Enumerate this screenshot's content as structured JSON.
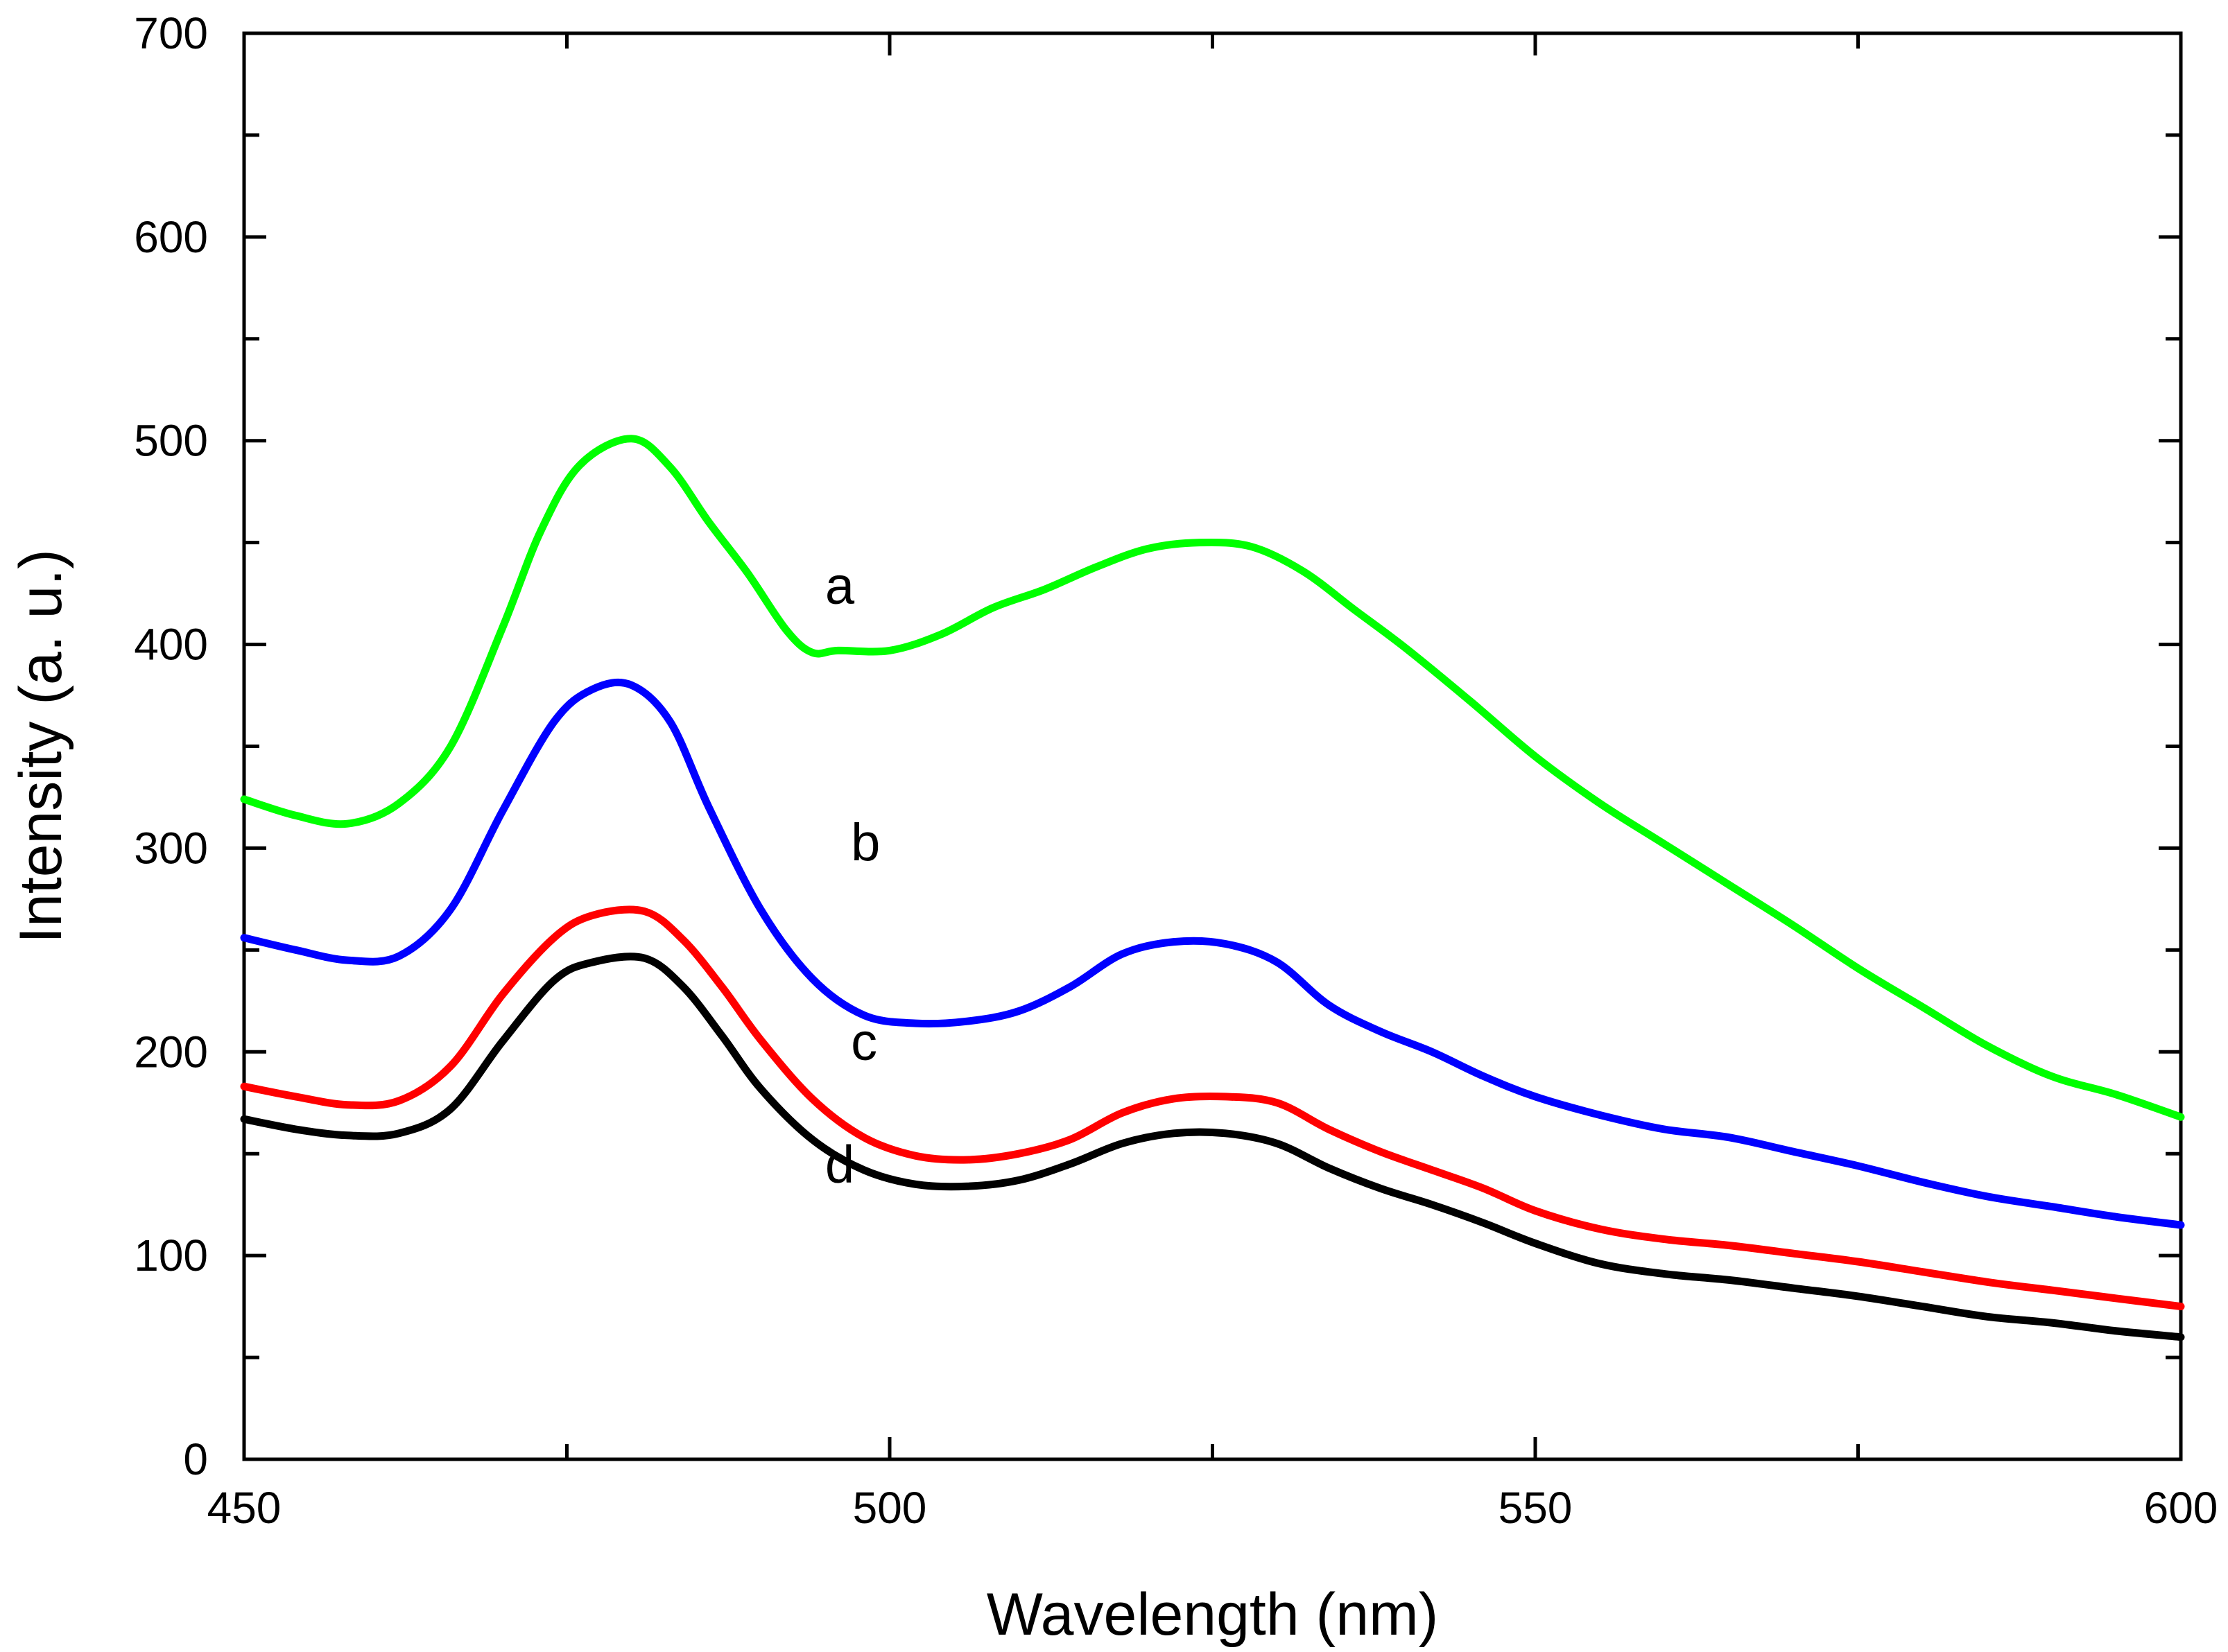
{
  "chart_data": {
    "type": "line",
    "title": "",
    "xlabel": "Wavelength (nm)",
    "ylabel": "Intensity (a. u.)",
    "xlim": [
      450,
      600
    ],
    "ylim": [
      0,
      700
    ],
    "xticks": [
      450,
      500,
      550,
      600
    ],
    "yticks": [
      0,
      100,
      200,
      300,
      400,
      500,
      600,
      700
    ],
    "grid": false,
    "series": [
      {
        "name": "a",
        "color": "#00ff00",
        "label_at": [
          495,
          420
        ],
        "x": [
          450,
          454,
          458,
          462,
          466,
          470,
          473,
          476,
          480,
          483,
          486,
          489,
          492,
          494,
          496,
          500,
          504,
          508,
          512,
          516,
          520,
          524,
          528,
          532,
          536,
          540,
          545,
          550,
          555,
          560,
          565,
          570,
          575,
          580,
          585,
          590,
          595,
          600
        ],
        "values": [
          324,
          316,
          312,
          322,
          350,
          408,
          456,
          488,
          501,
          487,
          460,
          435,
          407,
          396,
          397,
          397,
          405,
          418,
          427,
          438,
          447,
          450,
          448,
          436,
          417,
          398,
          372,
          345,
          322,
          302,
          282,
          262,
          241,
          222,
          203,
          188,
          179,
          168
        ]
      },
      {
        "name": "b",
        "color": "#0000ff",
        "label_at": [
          497,
          294
        ],
        "x": [
          450,
          454,
          458,
          462,
          466,
          470,
          474,
          477,
          480,
          483,
          486,
          490,
          494,
          498,
          502,
          506,
          510,
          514,
          518,
          522,
          526,
          530,
          534,
          538,
          542,
          546,
          550,
          555,
          560,
          565,
          570,
          575,
          580,
          585,
          590,
          595,
          600
        ],
        "values": [
          256,
          250,
          245,
          247,
          270,
          318,
          362,
          378,
          380,
          362,
          320,
          270,
          236,
          218,
          214,
          215,
          220,
          232,
          248,
          254,
          253,
          244,
          223,
          210,
          200,
          188,
          178,
          169,
          162,
          158,
          151,
          144,
          136,
          129,
          124,
          119,
          115
        ]
      },
      {
        "name": "c",
        "color": "#ff0000",
        "label_at": [
          497,
          196
        ],
        "x": [
          450,
          454,
          458,
          462,
          466,
          470,
          474,
          477,
          481,
          484,
          487,
          490,
          494,
          498,
          502,
          506,
          510,
          514,
          518,
          522,
          526,
          530,
          534,
          538,
          542,
          546,
          550,
          555,
          560,
          565,
          570,
          575,
          580,
          585,
          590,
          595,
          600
        ],
        "values": [
          183,
          178,
          174,
          176,
          193,
          228,
          256,
          267,
          269,
          255,
          232,
          206,
          177,
          158,
          149,
          147,
          150,
          157,
          170,
          177,
          178,
          175,
          162,
          151,
          142,
          133,
          122,
          113,
          108,
          105,
          101,
          97,
          92,
          87,
          83,
          79,
          75
        ]
      },
      {
        "name": "d",
        "color": "#000000",
        "label_at": [
          495,
          136
        ],
        "x": [
          450,
          454,
          458,
          462,
          466,
          470,
          474,
          477,
          481,
          484,
          487,
          490,
          494,
          498,
          502,
          506,
          510,
          514,
          518,
          522,
          526,
          530,
          534,
          538,
          542,
          546,
          550,
          555,
          560,
          565,
          570,
          575,
          580,
          585,
          590,
          595,
          600
        ],
        "values": [
          167,
          162,
          159,
          160,
          172,
          205,
          235,
          244,
          246,
          232,
          208,
          182,
          157,
          142,
          135,
          134,
          137,
          145,
          155,
          160,
          160,
          155,
          143,
          133,
          125,
          116,
          106,
          96,
          91,
          88,
          84,
          80,
          75,
          70,
          67,
          63,
          60
        ]
      }
    ]
  }
}
